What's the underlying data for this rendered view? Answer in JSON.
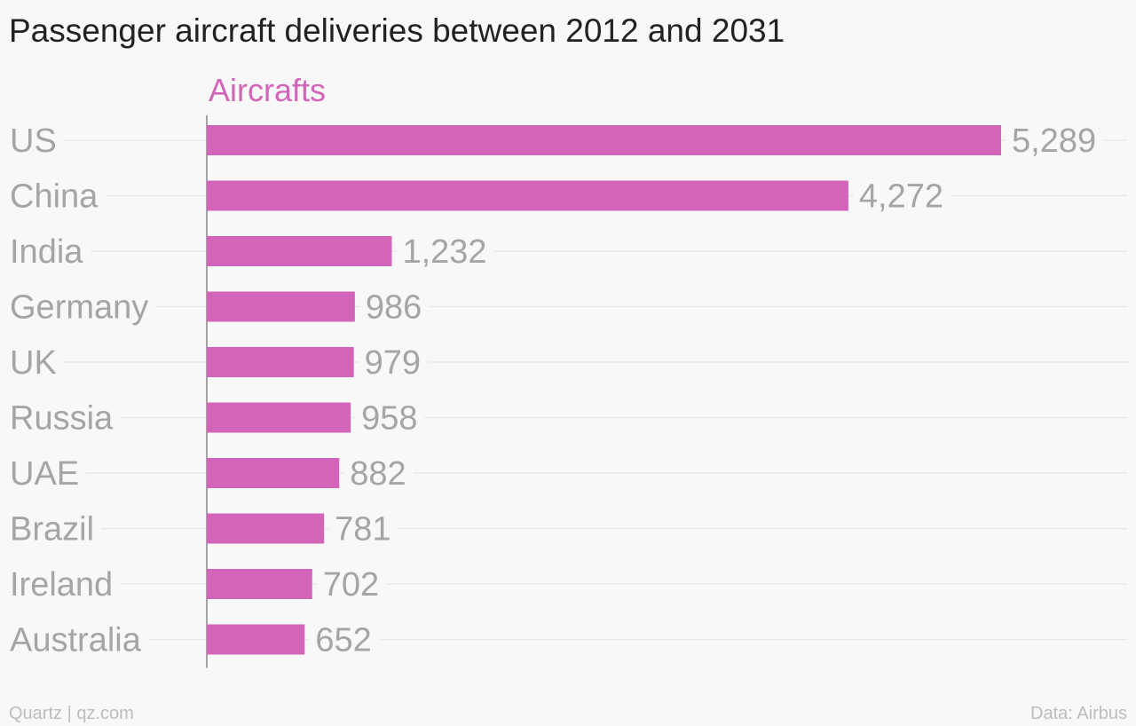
{
  "title": "Passenger aircraft deliveries between 2012 and 2031",
  "footer": {
    "source_left": "Quartz | qz.com",
    "source_right": "Data: Airbus"
  },
  "colors": {
    "bar": "#d264b9",
    "label": "#a5a5a5",
    "series_title": "#d264b9",
    "gridline": "#e8e8e8",
    "axis": "#888888"
  },
  "chart_data": {
    "type": "bar",
    "orientation": "horizontal",
    "series_title": "Aircrafts",
    "categories": [
      "US",
      "China",
      "India",
      "Germany",
      "UK",
      "Russia",
      "UAE",
      "Brazil",
      "Ireland",
      "Australia"
    ],
    "values": [
      5289,
      4272,
      1232,
      986,
      979,
      958,
      882,
      781,
      702,
      652
    ],
    "value_labels": [
      "5,289",
      "4,272",
      "1,232",
      "986",
      "979",
      "958",
      "882",
      "781",
      "702",
      "652"
    ],
    "xlim": [
      0,
      5289
    ],
    "grid": true
  }
}
